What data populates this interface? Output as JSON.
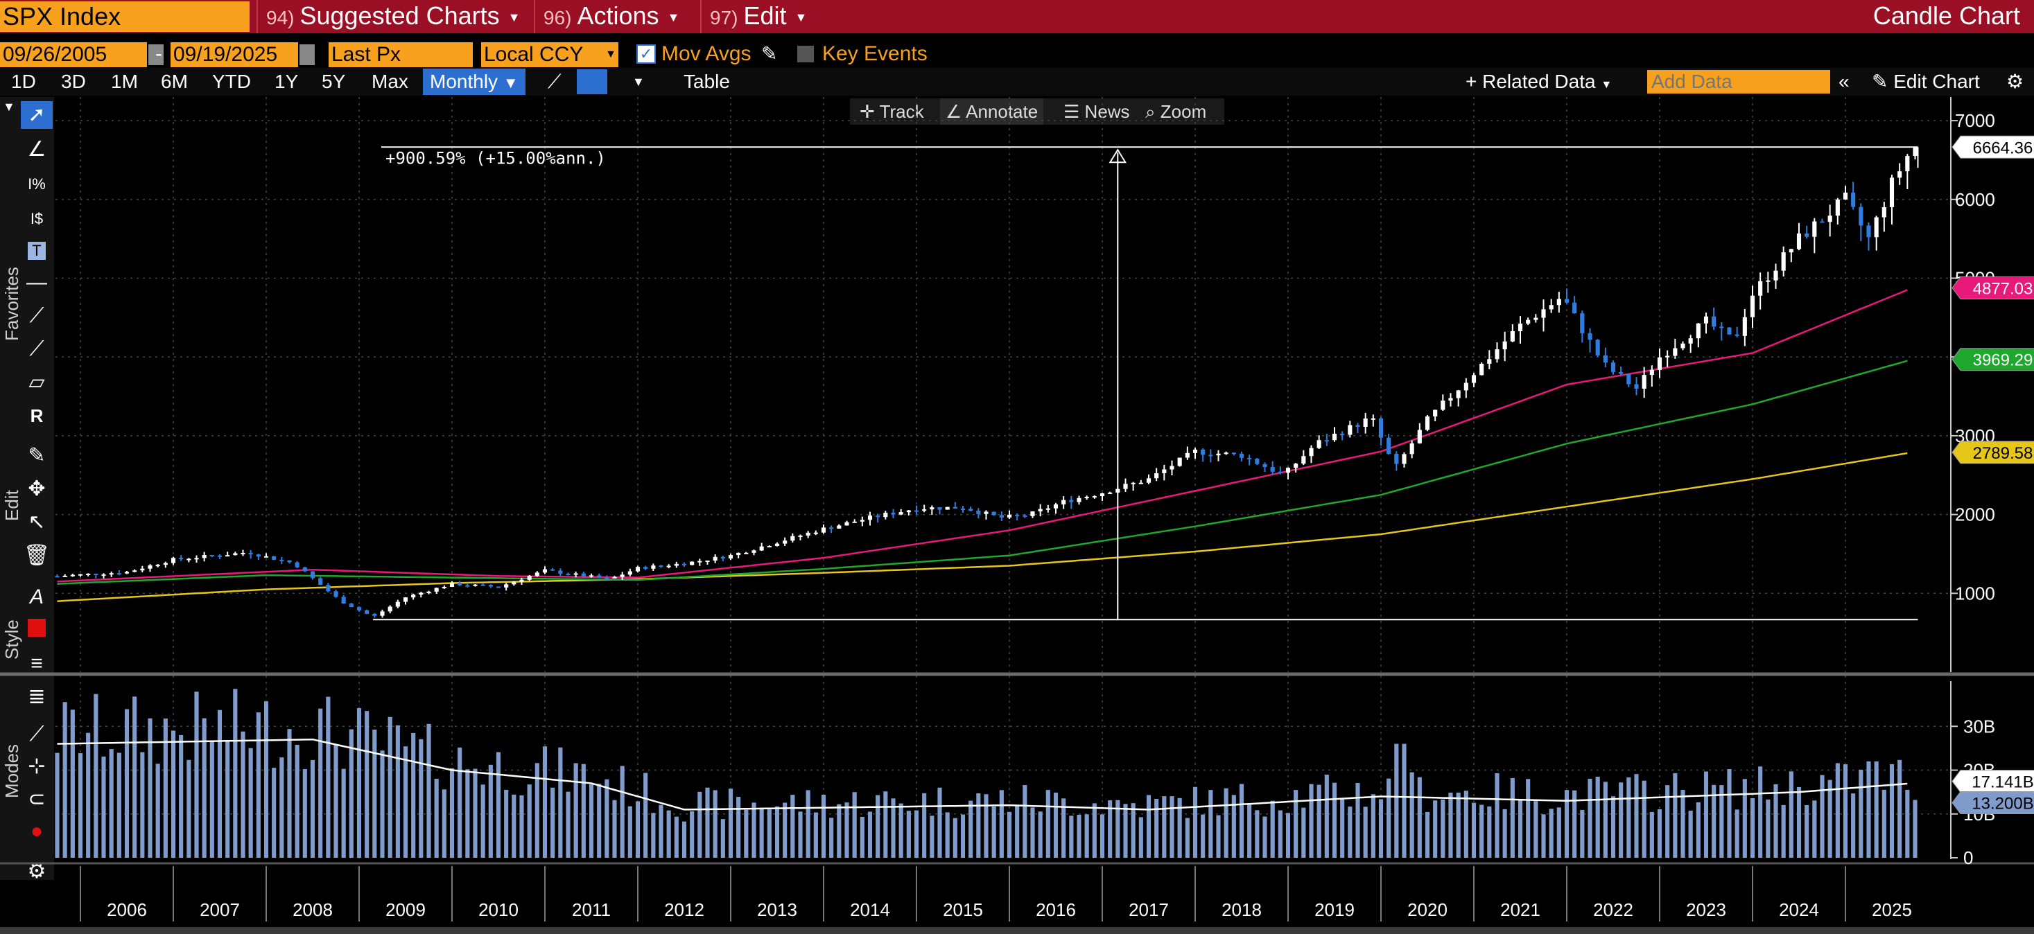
{
  "header": {
    "ticker": "SPX Index",
    "menus": [
      {
        "num": "94)",
        "label": "Suggested Charts"
      },
      {
        "num": "96)",
        "label": "Actions"
      },
      {
        "num": "97)",
        "label": "Edit"
      }
    ],
    "chart_title": "Candle Chart"
  },
  "controls": {
    "start_date": "09/26/2005",
    "end_date": "09/19/2025",
    "date_sep": "-",
    "field": "Last Px",
    "currency": "Local CCY",
    "mov_avgs_label": "Mov Avgs",
    "mov_avgs_checked": true,
    "key_events_label": "Key Events",
    "key_events_checked": false,
    "periods": [
      "1D",
      "3D",
      "1M",
      "6M",
      "YTD",
      "1Y",
      "5Y",
      "Max"
    ],
    "frequency": "Monthly",
    "table_label": "Table",
    "related_data": "+ Related Data",
    "add_data_placeholder": "Add Data",
    "edit_chart": "Edit Chart"
  },
  "chart_toolbar": {
    "track": "Track",
    "annotate": "Annotate",
    "news": "News",
    "zoom": "Zoom"
  },
  "sidebar": {
    "favorites": "Favorites",
    "edit": "Edit",
    "style": "Style",
    "modes": "Modes"
  },
  "chart_data": {
    "type": "candlestick",
    "x_axis_years": [
      "2006",
      "2007",
      "2008",
      "2009",
      "2010",
      "2011",
      "2012",
      "2013",
      "2014",
      "2015",
      "2016",
      "2017",
      "2018",
      "2019",
      "2020",
      "2021",
      "2022",
      "2023",
      "2024",
      "2025"
    ],
    "price_axis": {
      "ticks": [
        1000,
        2000,
        3000,
        4000,
        5000,
        6000,
        7000
      ],
      "range": [
        0,
        7300
      ]
    },
    "volume_axis": {
      "ticks": [
        "0",
        "10B",
        "20B",
        "30B"
      ],
      "range": [
        0,
        40
      ]
    },
    "annotation": {
      "text": "+900.59% (+15.00%ann.)",
      "low": 666,
      "high": 6664.36
    },
    "last_values": {
      "price": "6664.36",
      "ma_pink": "4877.03",
      "ma_green": "3969.29",
      "ma_yellow": "2789.58",
      "volume_avg": "17.141B",
      "volume": "13.200B"
    },
    "colors": {
      "pink": "#e8197b",
      "green": "#1fa82e",
      "yellow": "#e6c619",
      "volume_bar": "#7f9ccc",
      "down_candle": "#2f7de0",
      "up_candle": "#ffffff"
    },
    "price_anchors": [
      [
        2005.75,
        1220
      ],
      [
        2006.5,
        1270
      ],
      [
        2007.0,
        1430
      ],
      [
        2007.8,
        1520
      ],
      [
        2008.3,
        1380
      ],
      [
        2008.8,
        900
      ],
      [
        2009.15,
        700
      ],
      [
        2009.5,
        950
      ],
      [
        2010.0,
        1120
      ],
      [
        2010.5,
        1080
      ],
      [
        2011.0,
        1290
      ],
      [
        2011.7,
        1180
      ],
      [
        2012.0,
        1320
      ],
      [
        2012.5,
        1380
      ],
      [
        2013.0,
        1480
      ],
      [
        2013.5,
        1650
      ],
      [
        2014.0,
        1820
      ],
      [
        2014.5,
        1960
      ],
      [
        2015.0,
        2080
      ],
      [
        2015.5,
        2090
      ],
      [
        2015.9,
        1960
      ],
      [
        2016.2,
        1990
      ],
      [
        2016.6,
        2170
      ],
      [
        2017.0,
        2280
      ],
      [
        2017.5,
        2450
      ],
      [
        2018.0,
        2800
      ],
      [
        2018.5,
        2750
      ],
      [
        2018.95,
        2500
      ],
      [
        2019.3,
        2900
      ],
      [
        2019.9,
        3230
      ],
      [
        2020.15,
        2580
      ],
      [
        2020.5,
        3200
      ],
      [
        2021.0,
        3800
      ],
      [
        2021.5,
        4400
      ],
      [
        2021.95,
        4766
      ],
      [
        2022.4,
        3900
      ],
      [
        2022.75,
        3600
      ],
      [
        2023.0,
        4000
      ],
      [
        2023.5,
        4450
      ],
      [
        2023.8,
        4200
      ],
      [
        2024.0,
        4800
      ],
      [
        2024.5,
        5500
      ],
      [
        2025.0,
        6000
      ],
      [
        2025.25,
        5500
      ],
      [
        2025.5,
        6200
      ],
      [
        2025.72,
        6664
      ]
    ],
    "ma_pink_anchors": [
      [
        2005.75,
        1150
      ],
      [
        2008.5,
        1300
      ],
      [
        2010.5,
        1220
      ],
      [
        2012.0,
        1200
      ],
      [
        2014.0,
        1450
      ],
      [
        2016.0,
        1800
      ],
      [
        2018.0,
        2300
      ],
      [
        2020.0,
        2800
      ],
      [
        2022.0,
        3650
      ],
      [
        2024.0,
        4050
      ],
      [
        2025.72,
        4877
      ]
    ],
    "ma_green_anchors": [
      [
        2005.75,
        1120
      ],
      [
        2008.0,
        1230
      ],
      [
        2010.0,
        1200
      ],
      [
        2012.0,
        1170
      ],
      [
        2014.0,
        1310
      ],
      [
        2016.0,
        1480
      ],
      [
        2018.0,
        1850
      ],
      [
        2020.0,
        2250
      ],
      [
        2022.0,
        2900
      ],
      [
        2024.0,
        3400
      ],
      [
        2025.72,
        3969
      ]
    ],
    "ma_yellow_anchors": [
      [
        2005.75,
        900
      ],
      [
        2008.0,
        1050
      ],
      [
        2010.0,
        1130
      ],
      [
        2012.0,
        1180
      ],
      [
        2014.0,
        1260
      ],
      [
        2016.0,
        1350
      ],
      [
        2018.0,
        1530
      ],
      [
        2020.0,
        1750
      ],
      [
        2022.0,
        2100
      ],
      [
        2024.0,
        2450
      ],
      [
        2025.72,
        2790
      ]
    ],
    "volume_avg_anchors": [
      [
        2005.75,
        26
      ],
      [
        2008.5,
        27
      ],
      [
        2010.0,
        20
      ],
      [
        2011.5,
        17
      ],
      [
        2012.5,
        11
      ],
      [
        2016.0,
        12
      ],
      [
        2017.5,
        11
      ],
      [
        2020.0,
        14
      ],
      [
        2022.0,
        13
      ],
      [
        2024.5,
        15
      ],
      [
        2025.72,
        17
      ]
    ]
  }
}
